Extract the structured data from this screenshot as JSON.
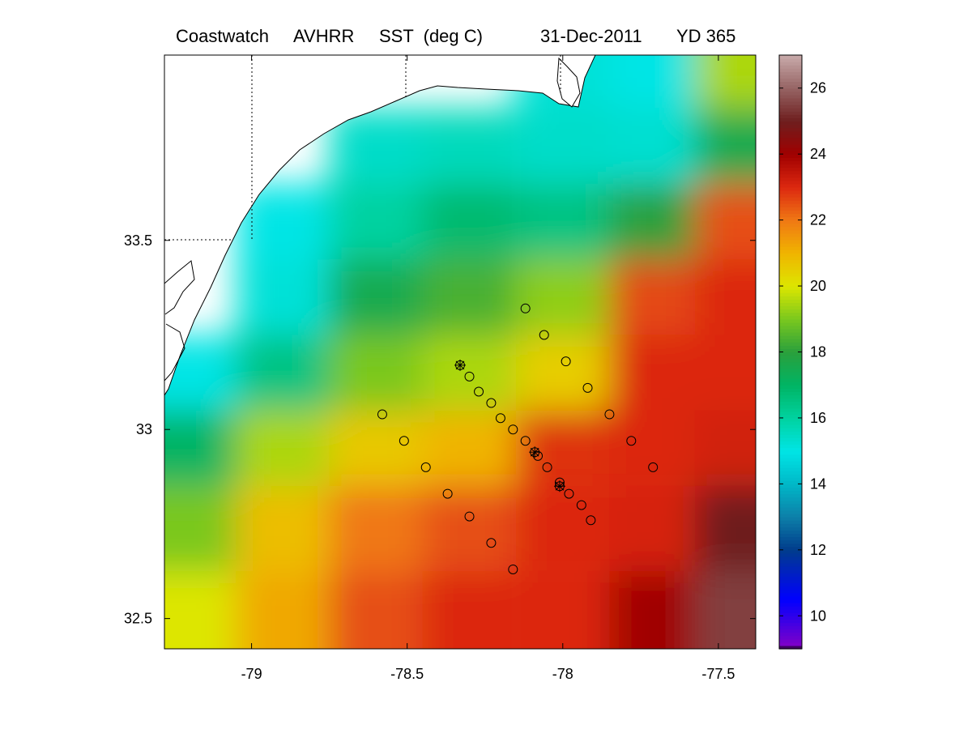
{
  "title": {
    "source": "Coastwatch",
    "sensor": "AVHRR",
    "variable": "SST  (deg C)",
    "date": "31-Dec-2011",
    "yearday": "YD 365"
  },
  "chart_data": {
    "type": "heatmap",
    "xlim": [
      -79.28,
      -77.38
    ],
    "ylim": [
      32.42,
      33.99
    ],
    "x_ticks": [
      {
        "value": -79,
        "label": "-79"
      },
      {
        "value": -78.5,
        "label": "-78.5"
      },
      {
        "value": -78,
        "label": "-78"
      },
      {
        "value": -77.5,
        "label": "-77.5"
      }
    ],
    "y_ticks": [
      {
        "value": 32.5,
        "label": "32.5"
      },
      {
        "value": 33,
        "label": "33"
      },
      {
        "value": 33.5,
        "label": "33.5"
      }
    ],
    "grid_dotted_at": {
      "x": [
        -79,
        -78.5,
        -78
      ],
      "y": [
        33.5
      ]
    },
    "colorbar": {
      "range": [
        9,
        27
      ],
      "ticks": [
        {
          "value": 10,
          "label": "10"
        },
        {
          "value": 12,
          "label": "12"
        },
        {
          "value": 14,
          "label": "14"
        },
        {
          "value": 16,
          "label": "16"
        },
        {
          "value": 18,
          "label": "18"
        },
        {
          "value": 20,
          "label": "20"
        },
        {
          "value": 22,
          "label": "22"
        },
        {
          "value": 24,
          "label": "24"
        },
        {
          "value": 26,
          "label": "26"
        }
      ],
      "stops": [
        {
          "v": 9.0,
          "c": "#000000"
        },
        {
          "v": 9.1,
          "c": "#8000c8"
        },
        {
          "v": 10.5,
          "c": "#0000ff"
        },
        {
          "v": 12.0,
          "c": "#003c8c"
        },
        {
          "v": 13.0,
          "c": "#0d7fa8"
        },
        {
          "v": 14.0,
          "c": "#00b8c8"
        },
        {
          "v": 15.0,
          "c": "#00e5e5"
        },
        {
          "v": 16.0,
          "c": "#00d2a0"
        },
        {
          "v": 17.0,
          "c": "#00b464"
        },
        {
          "v": 18.0,
          "c": "#2aa03c"
        },
        {
          "v": 19.0,
          "c": "#7ac81e"
        },
        {
          "v": 20.0,
          "c": "#dde600"
        },
        {
          "v": 21.0,
          "c": "#f0b400"
        },
        {
          "v": 22.0,
          "c": "#f07814"
        },
        {
          "v": 23.0,
          "c": "#dc2810"
        },
        {
          "v": 24.0,
          "c": "#a00000"
        },
        {
          "v": 25.0,
          "c": "#6e1e1e"
        },
        {
          "v": 26.0,
          "c": "#966464"
        },
        {
          "v": 27.0,
          "c": "#c8aaaa"
        }
      ]
    },
    "sst_field": [
      {
        "lon": -79.2,
        "lat": 33.95,
        "v": -1
      },
      {
        "lon": -78.9,
        "lat": 33.95,
        "v": -1
      },
      {
        "lon": -78.6,
        "lat": 33.95,
        "v": -1
      },
      {
        "lon": -78.3,
        "lat": 33.95,
        "v": -1
      },
      {
        "lon": -78.0,
        "lat": 33.95,
        "v": 15.2
      },
      {
        "lon": -77.7,
        "lat": 33.95,
        "v": 15.0
      },
      {
        "lon": -77.45,
        "lat": 33.95,
        "v": 19.5
      },
      {
        "lon": -79.2,
        "lat": 33.75,
        "v": -1
      },
      {
        "lon": -78.9,
        "lat": 33.75,
        "v": -1
      },
      {
        "lon": -78.6,
        "lat": 33.75,
        "v": 15.4
      },
      {
        "lon": -78.3,
        "lat": 33.75,
        "v": 15.6
      },
      {
        "lon": -78.0,
        "lat": 33.75,
        "v": 15.4
      },
      {
        "lon": -77.7,
        "lat": 33.75,
        "v": 15.3
      },
      {
        "lon": -77.45,
        "lat": 33.75,
        "v": 17.5
      },
      {
        "lon": -79.2,
        "lat": 33.55,
        "v": -1
      },
      {
        "lon": -78.9,
        "lat": 33.55,
        "v": 15.0
      },
      {
        "lon": -78.6,
        "lat": 33.55,
        "v": 16.0
      },
      {
        "lon": -78.3,
        "lat": 33.55,
        "v": 16.8
      },
      {
        "lon": -78.0,
        "lat": 33.55,
        "v": 16.5
      },
      {
        "lon": -77.7,
        "lat": 33.55,
        "v": 18.0
      },
      {
        "lon": -77.45,
        "lat": 33.55,
        "v": 22.5
      },
      {
        "lon": -79.2,
        "lat": 33.35,
        "v": -1
      },
      {
        "lon": -78.9,
        "lat": 33.35,
        "v": 15.2
      },
      {
        "lon": -78.6,
        "lat": 33.35,
        "v": 17.5
      },
      {
        "lon": -78.3,
        "lat": 33.35,
        "v": 18.4
      },
      {
        "lon": -78.0,
        "lat": 33.35,
        "v": 19.2
      },
      {
        "lon": -77.7,
        "lat": 33.35,
        "v": 22.6
      },
      {
        "lon": -77.45,
        "lat": 33.35,
        "v": 23.0
      },
      {
        "lon": -79.2,
        "lat": 33.15,
        "v": 15.0
      },
      {
        "lon": -78.9,
        "lat": 33.15,
        "v": 16.5
      },
      {
        "lon": -78.6,
        "lat": 33.15,
        "v": 19.0
      },
      {
        "lon": -78.3,
        "lat": 33.15,
        "v": 19.5
      },
      {
        "lon": -78.0,
        "lat": 33.15,
        "v": 20.5
      },
      {
        "lon": -77.7,
        "lat": 33.15,
        "v": 23.0
      },
      {
        "lon": -77.45,
        "lat": 33.15,
        "v": 23.0
      },
      {
        "lon": -79.2,
        "lat": 32.95,
        "v": 17.0
      },
      {
        "lon": -78.9,
        "lat": 32.95,
        "v": 19.5
      },
      {
        "lon": -78.6,
        "lat": 32.95,
        "v": 20.6
      },
      {
        "lon": -78.3,
        "lat": 32.95,
        "v": 21.0
      },
      {
        "lon": -78.0,
        "lat": 32.95,
        "v": 22.9
      },
      {
        "lon": -77.7,
        "lat": 32.95,
        "v": 23.0
      },
      {
        "lon": -77.45,
        "lat": 32.95,
        "v": 23.2
      },
      {
        "lon": -79.2,
        "lat": 32.75,
        "v": 19.0
      },
      {
        "lon": -78.9,
        "lat": 32.75,
        "v": 20.8
      },
      {
        "lon": -78.6,
        "lat": 32.75,
        "v": 22.0
      },
      {
        "lon": -78.3,
        "lat": 32.75,
        "v": 22.5
      },
      {
        "lon": -78.0,
        "lat": 32.75,
        "v": 23.0
      },
      {
        "lon": -77.7,
        "lat": 32.75,
        "v": 23.1
      },
      {
        "lon": -77.45,
        "lat": 32.75,
        "v": 25.0
      },
      {
        "lon": -79.2,
        "lat": 32.5,
        "v": 20.0
      },
      {
        "lon": -78.9,
        "lat": 32.5,
        "v": 21.2
      },
      {
        "lon": -78.6,
        "lat": 32.5,
        "v": 22.5
      },
      {
        "lon": -78.3,
        "lat": 32.5,
        "v": 23.0
      },
      {
        "lon": -78.0,
        "lat": 32.5,
        "v": 23.0
      },
      {
        "lon": -77.7,
        "lat": 32.5,
        "v": 24.0
      },
      {
        "lon": -77.45,
        "lat": 32.5,
        "v": 25.5
      }
    ],
    "stations_circle": [
      {
        "lon": -78.12,
        "lat": 33.32
      },
      {
        "lon": -78.06,
        "lat": 33.25
      },
      {
        "lon": -77.99,
        "lat": 33.18
      },
      {
        "lon": -77.92,
        "lat": 33.11
      },
      {
        "lon": -77.85,
        "lat": 33.04
      },
      {
        "lon": -77.78,
        "lat": 32.97
      },
      {
        "lon": -77.71,
        "lat": 32.9
      },
      {
        "lon": -78.3,
        "lat": 33.14
      },
      {
        "lon": -78.27,
        "lat": 33.1
      },
      {
        "lon": -78.23,
        "lat": 33.07
      },
      {
        "lon": -78.2,
        "lat": 33.03
      },
      {
        "lon": -78.16,
        "lat": 33.0
      },
      {
        "lon": -78.12,
        "lat": 32.97
      },
      {
        "lon": -78.08,
        "lat": 32.93
      },
      {
        "lon": -78.05,
        "lat": 32.9
      },
      {
        "lon": -78.01,
        "lat": 32.86
      },
      {
        "lon": -77.98,
        "lat": 32.83
      },
      {
        "lon": -77.94,
        "lat": 32.8
      },
      {
        "lon": -77.91,
        "lat": 32.76
      },
      {
        "lon": -78.58,
        "lat": 33.04
      },
      {
        "lon": -78.51,
        "lat": 32.97
      },
      {
        "lon": -78.44,
        "lat": 32.9
      },
      {
        "lon": -78.37,
        "lat": 32.83
      },
      {
        "lon": -78.3,
        "lat": 32.77
      },
      {
        "lon": -78.23,
        "lat": 32.7
      },
      {
        "lon": -78.16,
        "lat": 32.63
      }
    ],
    "stations_star": [
      {
        "lon": -78.33,
        "lat": 33.17
      },
      {
        "lon": -78.09,
        "lat": 32.94
      },
      {
        "lon": -78.01,
        "lat": 32.85
      }
    ]
  }
}
